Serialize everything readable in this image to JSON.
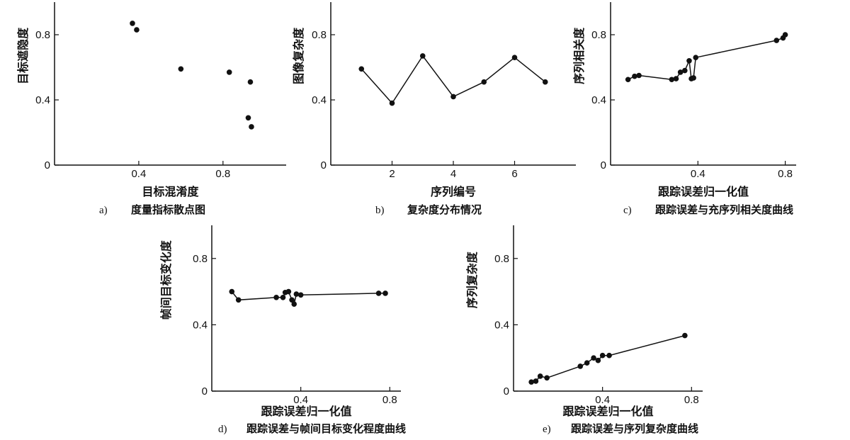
{
  "chart_data": [
    {
      "id": "a",
      "type": "scatter",
      "xlabel": "目标混淆度",
      "ylabel": "目标遮隐度",
      "caption_letter": "a)",
      "caption": "度量指标散点图",
      "xlim": [
        0.0,
        1.1
      ],
      "ylim": [
        0.0,
        1.0
      ],
      "xticks": [
        0.4,
        0.8
      ],
      "yticks": [
        0,
        0.4,
        0.8
      ],
      "xticklabels": [
        "0.4",
        "0.8"
      ],
      "yticklabels": [
        "0",
        "0.4",
        "0.8"
      ],
      "points": [
        [
          0.37,
          0.87
        ],
        [
          0.39,
          0.83
        ],
        [
          0.6,
          0.59
        ],
        [
          0.83,
          0.57
        ],
        [
          0.93,
          0.51
        ],
        [
          0.92,
          0.29
        ],
        [
          0.935,
          0.235
        ]
      ],
      "connected": false
    },
    {
      "id": "b",
      "type": "line",
      "xlabel": "序列编号",
      "ylabel": "图像复杂度",
      "caption_letter": "b)",
      "caption": "复杂度分布情况",
      "xlim": [
        0.0,
        8.0
      ],
      "ylim": [
        0.0,
        1.0
      ],
      "xticks": [
        2,
        4,
        6
      ],
      "yticks": [
        0,
        0.4,
        0.8
      ],
      "xticklabels": [
        "2",
        "4",
        "6"
      ],
      "yticklabels": [
        "0",
        "0.4",
        "0.8"
      ],
      "points": [
        [
          1,
          0.59
        ],
        [
          2,
          0.38
        ],
        [
          3,
          0.67
        ],
        [
          4,
          0.42
        ],
        [
          5,
          0.51
        ],
        [
          6,
          0.66
        ],
        [
          7,
          0.51
        ]
      ],
      "connected": true
    },
    {
      "id": "c",
      "type": "line",
      "xlabel": "跟踪误差归一化值",
      "ylabel": "序列相关度",
      "caption_letter": "c)",
      "caption": "跟踪误差与充序列相关度曲线",
      "xlim": [
        0.0,
        0.85
      ],
      "ylim": [
        0.0,
        1.0
      ],
      "xticks": [
        0.4,
        0.8
      ],
      "yticks": [
        0,
        0.4,
        0.8
      ],
      "xticklabels": [
        "0.4",
        "0.8"
      ],
      "yticklabels": [
        "0",
        "0.4",
        "0.8"
      ],
      "points": [
        [
          0.08,
          0.525
        ],
        [
          0.11,
          0.545
        ],
        [
          0.13,
          0.55
        ],
        [
          0.28,
          0.525
        ],
        [
          0.3,
          0.53
        ],
        [
          0.32,
          0.57
        ],
        [
          0.34,
          0.58
        ],
        [
          0.36,
          0.64
        ],
        [
          0.37,
          0.53
        ],
        [
          0.38,
          0.535
        ],
        [
          0.39,
          0.66
        ],
        [
          0.76,
          0.765
        ],
        [
          0.79,
          0.78
        ],
        [
          0.8,
          0.8
        ]
      ],
      "connected": true
    },
    {
      "id": "d",
      "type": "line",
      "xlabel": "跟踪误差归一化值",
      "ylabel": "帧间目标变化度",
      "caption_letter": "d)",
      "caption": "跟踪误差与帧间目标变化程度曲线",
      "xlim": [
        0.0,
        0.85
      ],
      "ylim": [
        0.0,
        1.0
      ],
      "xticks": [
        0.4,
        0.8
      ],
      "yticks": [
        0,
        0.4,
        0.8
      ],
      "xticklabels": [
        "0.4",
        "0.8"
      ],
      "yticklabels": [
        "0",
        "0.4",
        "0.8"
      ],
      "points": [
        [
          0.09,
          0.6
        ],
        [
          0.12,
          0.55
        ],
        [
          0.29,
          0.565
        ],
        [
          0.32,
          0.565
        ],
        [
          0.33,
          0.595
        ],
        [
          0.345,
          0.6
        ],
        [
          0.36,
          0.55
        ],
        [
          0.37,
          0.525
        ],
        [
          0.38,
          0.585
        ],
        [
          0.4,
          0.58
        ],
        [
          0.75,
          0.59
        ],
        [
          0.78,
          0.59
        ]
      ],
      "connected": true
    },
    {
      "id": "e",
      "type": "line",
      "xlabel": "跟踪误差归一化值",
      "ylabel": "序列复杂度",
      "caption_letter": "e)",
      "caption": "跟踪误差与序列复杂度曲线",
      "xlim": [
        0.0,
        0.85
      ],
      "ylim": [
        0.0,
        1.0
      ],
      "xticks": [
        0.4,
        0.8
      ],
      "yticks": [
        0,
        0.4,
        0.8
      ],
      "xticklabels": [
        "0.4",
        "0.8"
      ],
      "yticklabels": [
        "0",
        "0.4",
        "0.8"
      ],
      "points": [
        [
          0.08,
          0.055
        ],
        [
          0.1,
          0.06
        ],
        [
          0.12,
          0.09
        ],
        [
          0.15,
          0.08
        ],
        [
          0.3,
          0.15
        ],
        [
          0.33,
          0.17
        ],
        [
          0.36,
          0.2
        ],
        [
          0.38,
          0.185
        ],
        [
          0.4,
          0.215
        ],
        [
          0.43,
          0.215
        ],
        [
          0.77,
          0.335
        ]
      ],
      "connected": true
    }
  ]
}
